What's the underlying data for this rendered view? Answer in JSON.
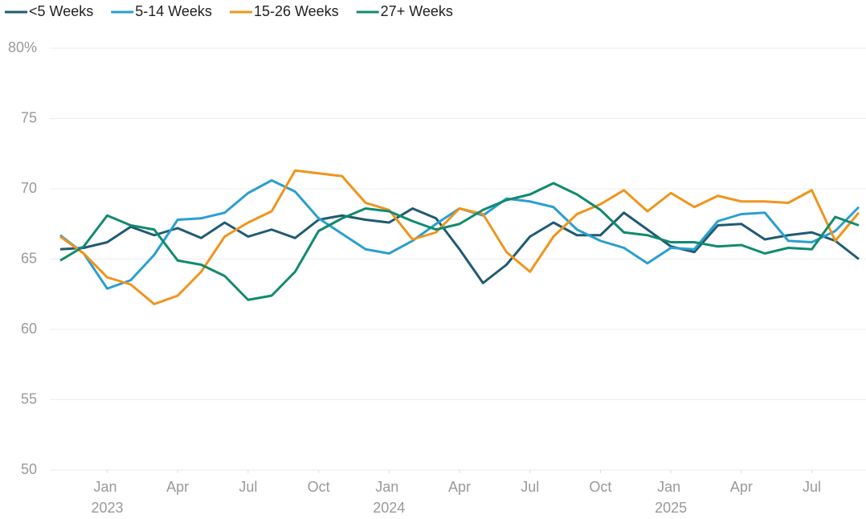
{
  "chart_data": {
    "type": "line",
    "x": [
      "2022-11",
      "2022-12",
      "2023-01",
      "2023-02",
      "2023-03",
      "2023-04",
      "2023-05",
      "2023-06",
      "2023-07",
      "2023-08",
      "2023-09",
      "2023-10",
      "2023-11",
      "2023-12",
      "2024-01",
      "2024-02",
      "2024-03",
      "2024-04",
      "2024-05",
      "2024-06",
      "2024-07",
      "2024-08",
      "2024-09",
      "2024-10",
      "2024-11",
      "2024-12",
      "2025-01",
      "2025-02",
      "2025-03",
      "2025-04",
      "2025-05",
      "2025-06",
      "2025-07",
      "2025-08",
      "2025-09"
    ],
    "series": [
      {
        "name": "<5 Weeks",
        "color": "#1f5a73",
        "values": [
          65.7,
          65.8,
          66.2,
          67.3,
          66.7,
          67.2,
          66.5,
          67.6,
          66.6,
          67.1,
          66.5,
          67.8,
          68.1,
          67.8,
          67.6,
          68.6,
          67.9,
          65.7,
          63.3,
          64.6,
          66.6,
          67.6,
          66.7,
          66.7,
          68.3,
          67.1,
          65.9,
          65.5,
          67.4,
          67.5,
          66.4,
          66.7,
          66.9,
          66.3,
          65.0
        ]
      },
      {
        "name": "5-14 Weeks",
        "color": "#2a9fd0",
        "values": [
          66.7,
          65.4,
          62.9,
          63.5,
          65.3,
          67.8,
          67.9,
          68.3,
          69.7,
          70.6,
          69.8,
          67.9,
          66.8,
          65.7,
          65.4,
          66.3,
          67.5,
          68.6,
          68.1,
          69.3,
          69.1,
          68.7,
          67.1,
          66.3,
          65.8,
          64.7,
          65.8,
          65.7,
          67.7,
          68.2,
          68.3,
          66.3,
          66.2,
          67.0,
          68.7
        ]
      },
      {
        "name": "15-26 Weeks",
        "color": "#f0941c",
        "values": [
          66.6,
          65.4,
          63.7,
          63.2,
          61.8,
          62.4,
          64.1,
          66.6,
          67.6,
          68.4,
          71.3,
          71.1,
          70.9,
          69.0,
          68.5,
          66.4,
          66.9,
          68.6,
          68.2,
          65.5,
          64.1,
          66.6,
          68.2,
          68.9,
          69.9,
          68.4,
          69.7,
          68.7,
          69.5,
          69.1,
          69.1,
          69.0,
          69.9,
          66.3,
          68.3
        ]
      },
      {
        "name": "27+ Weeks",
        "color": "#118a6e",
        "values": [
          64.9,
          65.9,
          68.1,
          67.4,
          67.1,
          64.9,
          64.6,
          63.8,
          62.1,
          62.4,
          64.1,
          67.0,
          67.9,
          68.6,
          68.4,
          67.7,
          67.1,
          67.5,
          68.5,
          69.2,
          69.6,
          70.4,
          69.6,
          68.5,
          66.9,
          66.7,
          66.2,
          66.2,
          65.9,
          66.0,
          65.4,
          65.8,
          65.7,
          68.0,
          67.4
        ]
      }
    ],
    "ylim": [
      50,
      80
    ],
    "yticks": [
      50,
      55,
      60,
      65,
      70,
      75,
      {
        "value": 80,
        "label": "80%"
      }
    ],
    "xlim": [
      "2022-11",
      "2025-09"
    ],
    "xticks": [
      {
        "value": "2023-01",
        "label": "Jan 2023"
      },
      {
        "value": "2023-04",
        "label": "Apr"
      },
      {
        "value": "2023-07",
        "label": "Jul"
      },
      {
        "value": "2023-10",
        "label": "Oct"
      },
      {
        "value": "2024-01",
        "label": "Jan 2024"
      },
      {
        "value": "2024-04",
        "label": "Apr"
      },
      {
        "value": "2024-07",
        "label": "Jul"
      },
      {
        "value": "2024-10",
        "label": "Oct"
      },
      {
        "value": "2025-01",
        "label": "Jan 2025"
      },
      {
        "value": "2025-04",
        "label": "Apr"
      },
      {
        "value": "2025-07",
        "label": "Jul"
      }
    ],
    "grid": true,
    "legend": "top"
  }
}
